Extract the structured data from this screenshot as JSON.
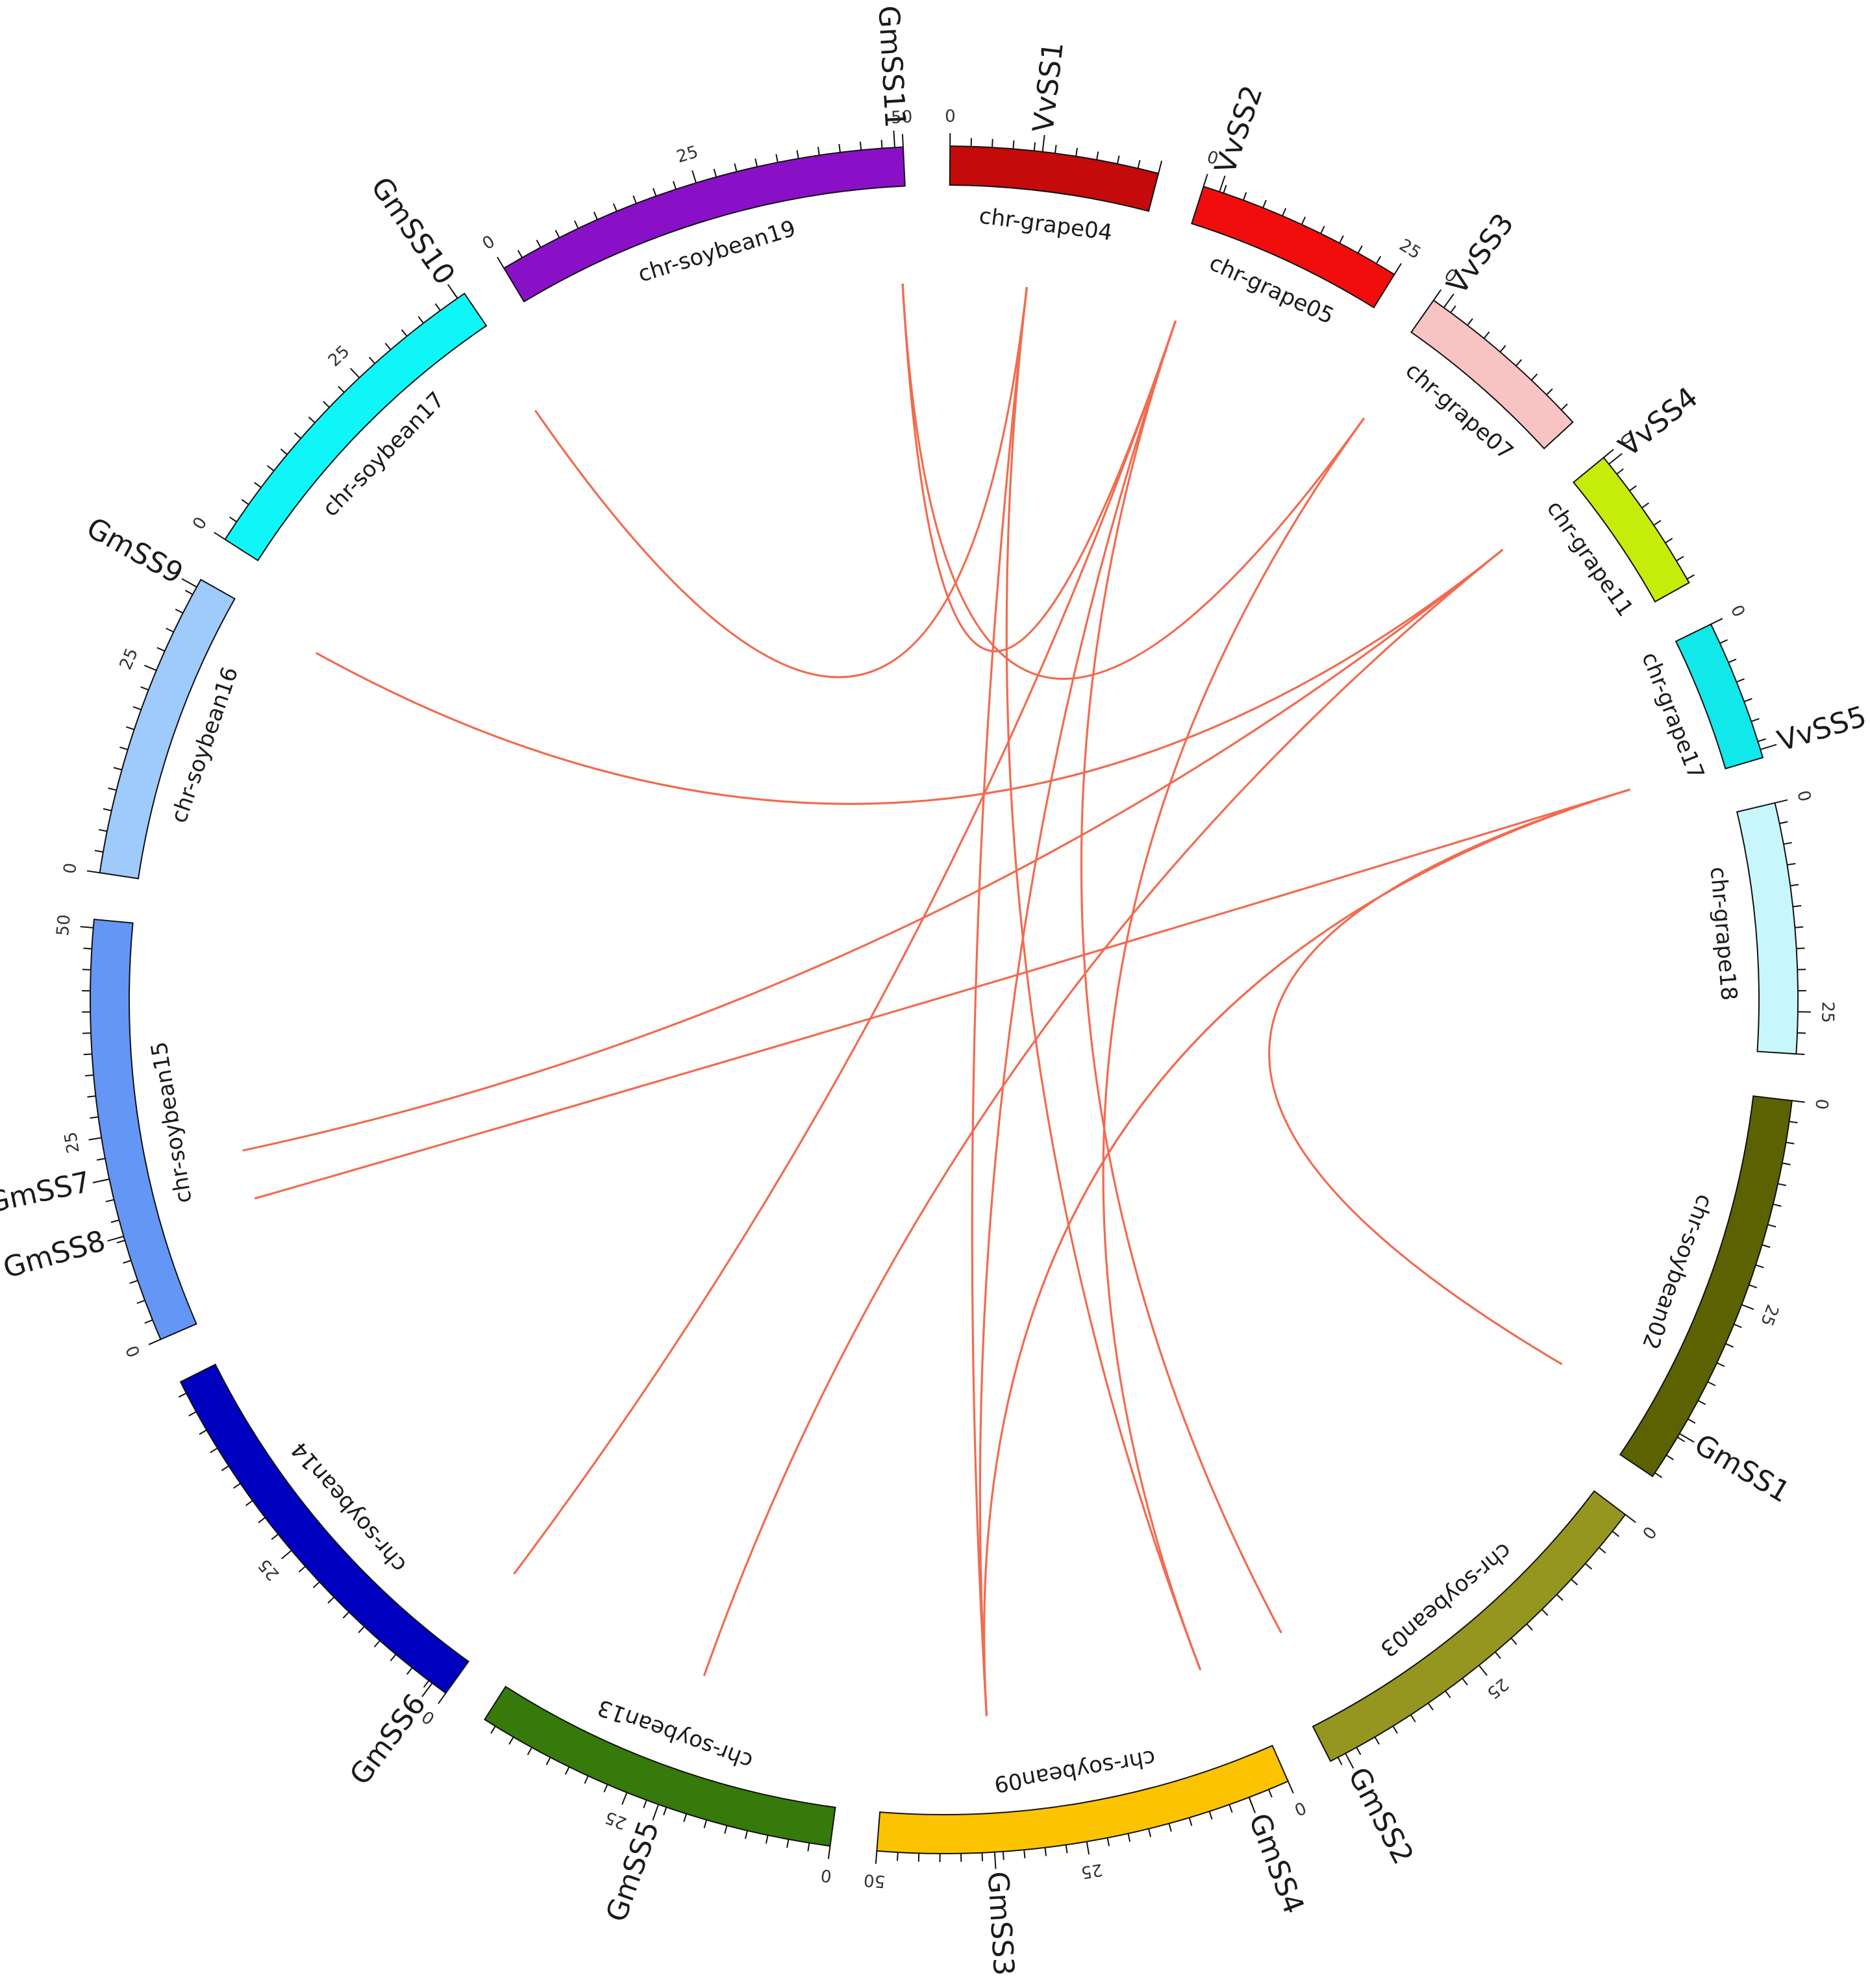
{
  "link_color": "#f26b4f",
  "chromosomes": [
    {
      "id": "chr-grape04",
      "label": "chr-grape04",
      "color": "#c40a0a",
      "length": 25,
      "ticks": [
        {
          "pos": 0,
          "label": "0"
        }
      ]
    },
    {
      "id": "chr-grape05",
      "label": "chr-grape05",
      "color": "#f20d0d",
      "length": 25,
      "ticks": [
        {
          "pos": 0,
          "label": "0"
        },
        {
          "pos": 25,
          "label": "25"
        }
      ]
    },
    {
      "id": "chr-grape07",
      "label": "chr-grape07",
      "color": "#f8c3c3",
      "length": 22,
      "ticks": [
        {
          "pos": 0,
          "label": "0"
        }
      ]
    },
    {
      "id": "chr-grape11",
      "label": "chr-grape11",
      "color": "#c6ec0a",
      "length": 18,
      "ticks": [
        {
          "pos": 0,
          "label": "0"
        }
      ]
    },
    {
      "id": "chr-grape17",
      "label": "chr-grape17",
      "color": "#10e8ea",
      "length": 17,
      "ticks": [
        {
          "pos": 0,
          "label": "0"
        }
      ]
    },
    {
      "id": "chr-grape18",
      "label": "chr-grape18",
      "color": "#c8f7fb",
      "length": 30,
      "ticks": [
        {
          "pos": 0,
          "label": "0"
        },
        {
          "pos": 25,
          "label": "25"
        }
      ]
    },
    {
      "id": "chr-soybean02",
      "label": "chr-soybean02",
      "color": "#5c6201",
      "length": 48,
      "ticks": [
        {
          "pos": 0,
          "label": "0"
        },
        {
          "pos": 25,
          "label": "25"
        }
      ]
    },
    {
      "id": "chr-soybean03",
      "label": "chr-soybean03",
      "color": "#949620",
      "length": 46,
      "ticks": [
        {
          "pos": 0,
          "label": "0"
        },
        {
          "pos": 25,
          "label": "25"
        }
      ]
    },
    {
      "id": "chr-soybean09",
      "label": "chr-soybean09",
      "color": "#fcc400",
      "length": 50,
      "ticks": [
        {
          "pos": 0,
          "label": "0"
        },
        {
          "pos": 25,
          "label": "25"
        },
        {
          "pos": 50,
          "label": "50"
        }
      ]
    },
    {
      "id": "chr-soybean13",
      "label": "chr-soybean13",
      "color": "#357a0a",
      "length": 44,
      "ticks": [
        {
          "pos": 0,
          "label": "0"
        },
        {
          "pos": 25,
          "label": "25"
        }
      ]
    },
    {
      "id": "chr-soybean14",
      "label": "chr-soybean14",
      "color": "#0000c0",
      "length": 49,
      "ticks": [
        {
          "pos": 0,
          "label": "0"
        },
        {
          "pos": 25,
          "label": "25"
        }
      ]
    },
    {
      "id": "chr-soybean15",
      "label": "chr-soybean15",
      "color": "#6496f5",
      "length": 51,
      "ticks": [
        {
          "pos": 0,
          "label": "0"
        },
        {
          "pos": 25,
          "label": "25"
        },
        {
          "pos": 50,
          "label": "50"
        }
      ]
    },
    {
      "id": "chr-soybean16",
      "label": "chr-soybean16",
      "color": "#9ecbfb",
      "length": 37,
      "ticks": [
        {
          "pos": 0,
          "label": "0"
        },
        {
          "pos": 25,
          "label": "25"
        }
      ]
    },
    {
      "id": "chr-soybean17",
      "label": "chr-soybean17",
      "color": "#0ff6f8",
      "length": 41,
      "ticks": [
        {
          "pos": 0,
          "label": "0"
        },
        {
          "pos": 25,
          "label": "25"
        }
      ]
    },
    {
      "id": "chr-soybean19",
      "label": "chr-soybean19",
      "color": "#8a10c8",
      "length": 50,
      "ticks": [
        {
          "pos": 0,
          "label": "0"
        },
        {
          "pos": 25,
          "label": "25"
        },
        {
          "pos": 50,
          "label": "50"
        }
      ]
    }
  ],
  "genes": [
    {
      "name": "VvSS1",
      "chr": "chr-grape04",
      "pos": 11
    },
    {
      "name": "VvSS2",
      "chr": "chr-grape05",
      "pos": 2
    },
    {
      "name": "VvSS3",
      "chr": "chr-grape07",
      "pos": 1.5
    },
    {
      "name": "VvSS4",
      "chr": "chr-grape11",
      "pos": 1
    },
    {
      "name": "VvSS5",
      "chr": "chr-grape17",
      "pos": 16
    },
    {
      "name": "GmSS1",
      "chr": "chr-soybean02",
      "pos": 42
    },
    {
      "name": "GmSS2",
      "chr": "chr-soybean03",
      "pos": 44
    },
    {
      "name": "GmSS3",
      "chr": "chr-soybean09",
      "pos": 36
    },
    {
      "name": "GmSS4",
      "chr": "chr-soybean09",
      "pos": 5
    },
    {
      "name": "GmSS5",
      "chr": "chr-soybean13",
      "pos": 21
    },
    {
      "name": "GmSS6",
      "chr": "chr-soybean14",
      "pos": 2
    },
    {
      "name": "GmSS7",
      "chr": "chr-soybean15",
      "pos": 20
    },
    {
      "name": "GmSS8",
      "chr": "chr-soybean15",
      "pos": 13
    },
    {
      "name": "GmSS9",
      "chr": "chr-soybean16",
      "pos": 36
    },
    {
      "name": "GmSS10",
      "chr": "chr-soybean17",
      "pos": 40
    },
    {
      "name": "GmSS11",
      "chr": "chr-soybean19",
      "pos": 49
    }
  ],
  "links": [
    {
      "from": "VvSS1",
      "to": "GmSS4"
    },
    {
      "from": "VvSS1",
      "to": "GmSS3"
    },
    {
      "from": "VvSS1",
      "to": "GmSS10"
    },
    {
      "from": "VvSS2",
      "to": "GmSS3"
    },
    {
      "from": "VvSS2",
      "to": "GmSS2"
    },
    {
      "from": "VvSS2",
      "to": "GmSS6"
    },
    {
      "from": "VvSS2",
      "to": "GmSS11"
    },
    {
      "from": "VvSS3",
      "to": "GmSS11"
    },
    {
      "from": "VvSS3",
      "to": "GmSS4"
    },
    {
      "from": "VvSS4",
      "to": "GmSS9"
    },
    {
      "from": "VvSS4",
      "to": "GmSS5"
    },
    {
      "from": "VvSS4",
      "to": "GmSS7"
    },
    {
      "from": "VvSS5",
      "to": "GmSS8"
    },
    {
      "from": "VvSS5",
      "to": "GmSS3"
    },
    {
      "from": "VvSS5",
      "to": "GmSS1"
    }
  ]
}
